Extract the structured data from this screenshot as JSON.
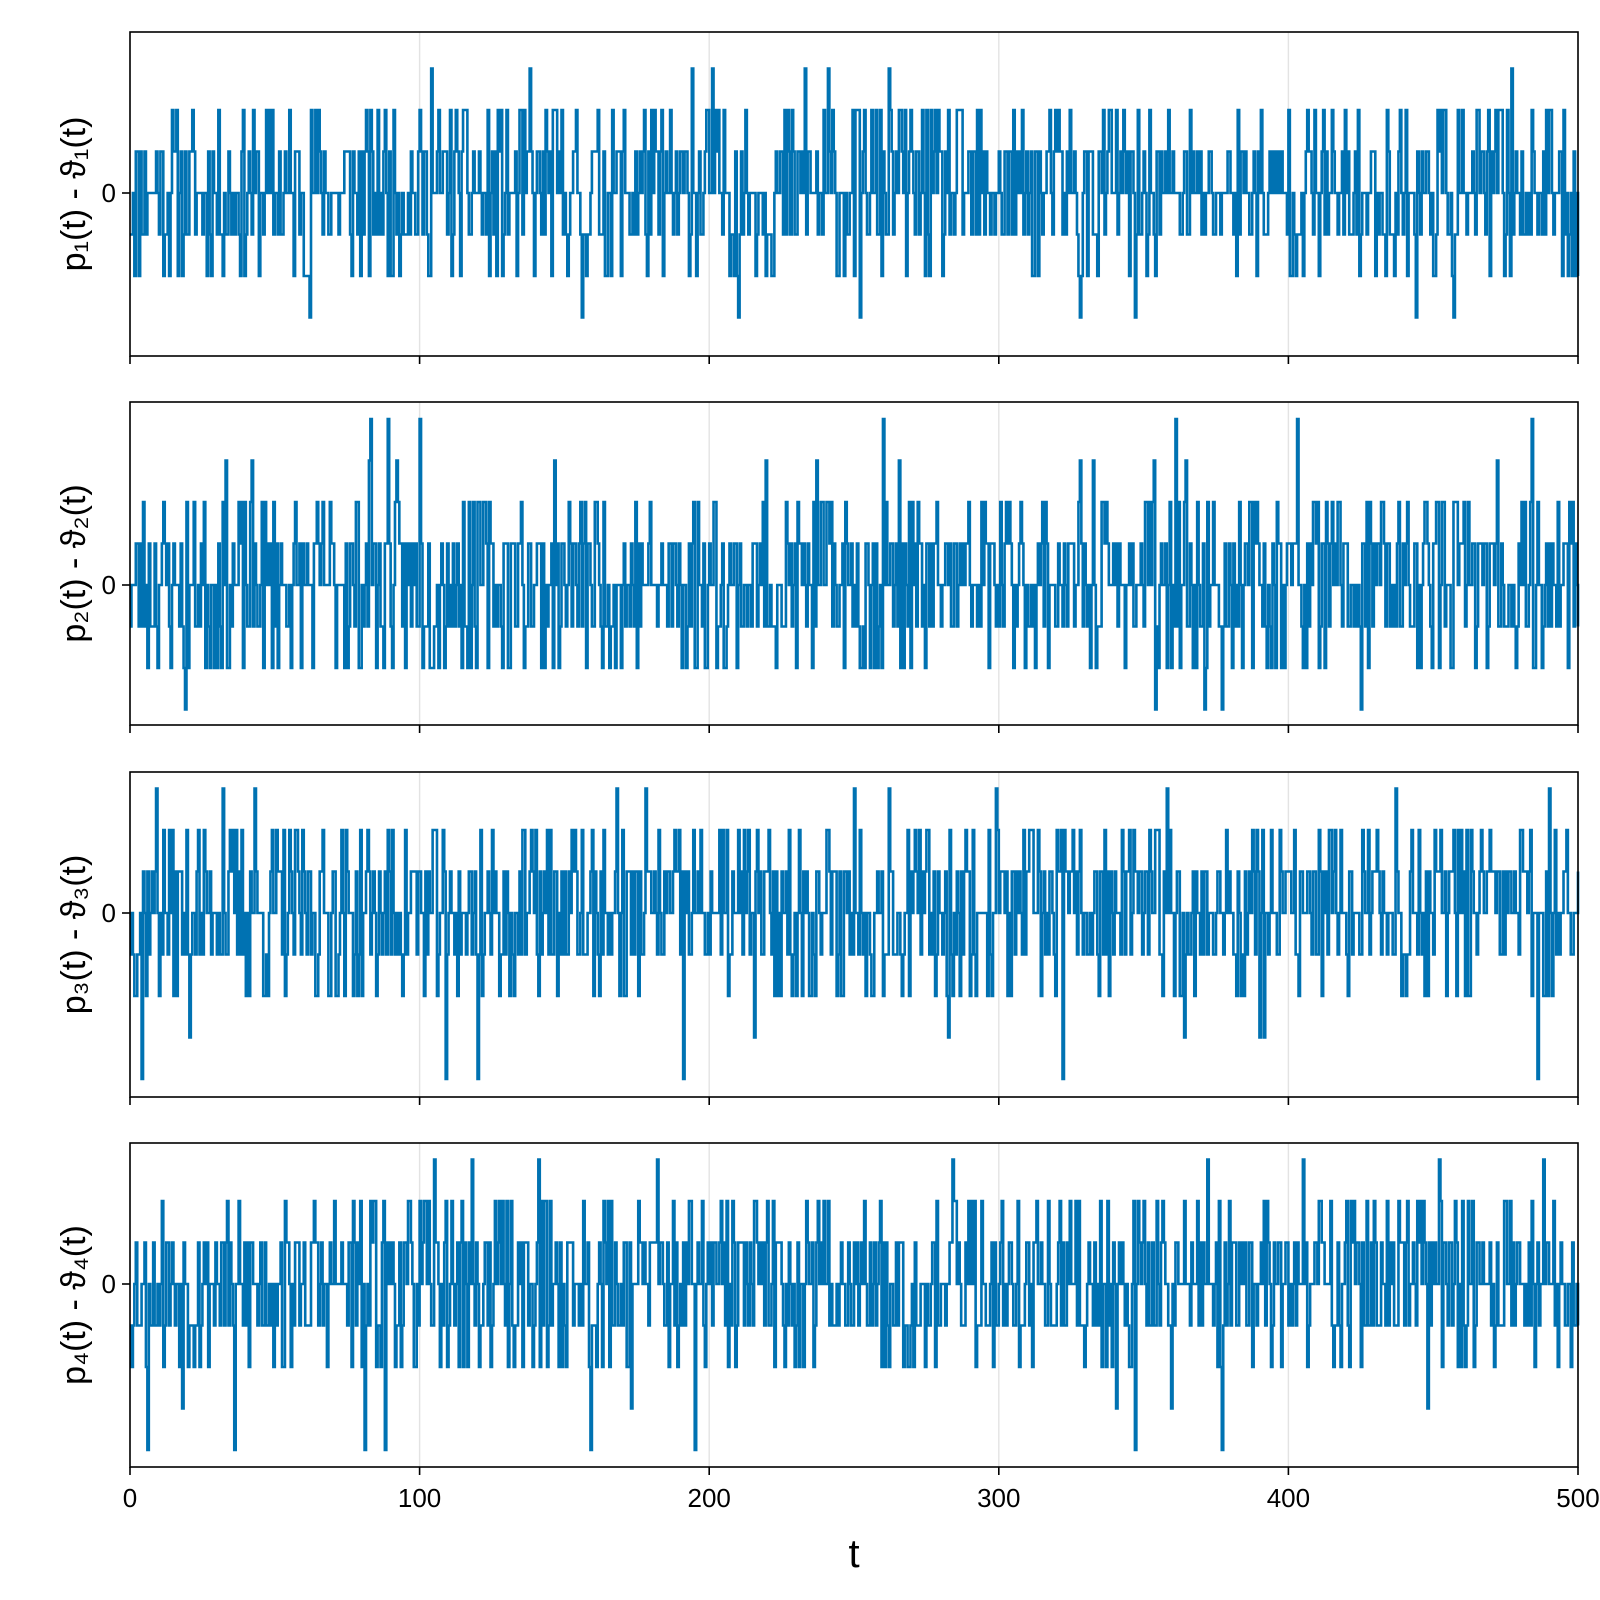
{
  "chart_data": [
    {
      "type": "line",
      "ylabel": "p₁(t) - ϑ₁(t)",
      "xlim": [
        0,
        500
      ],
      "yticks": [
        "0"
      ],
      "grid": true,
      "color": "#0072B2",
      "levels": [
        -3,
        -2,
        -1,
        0,
        1,
        2,
        3
      ],
      "ylim": [
        -3.3,
        3.3
      ],
      "seed": 11,
      "probs": [
        0.01,
        0.09,
        0.23,
        0.32,
        0.23,
        0.11,
        0.01
      ],
      "spikes_up": [
        104,
        138,
        194,
        201,
        233,
        241,
        262,
        477
      ],
      "spikes_down": [
        62,
        156,
        210,
        252,
        328,
        347,
        444,
        457
      ]
    },
    {
      "type": "line",
      "ylabel": "p₂(t) - ϑ₂(t)",
      "xlim": [
        0,
        500
      ],
      "yticks": [
        "0"
      ],
      "grid": true,
      "color": "#0072B2",
      "levels": [
        -3,
        -2,
        -1,
        0,
        1,
        2,
        3,
        4
      ],
      "ylim": [
        -3.4,
        4.4
      ],
      "seed": 23,
      "probs": [
        0.0,
        0.09,
        0.23,
        0.32,
        0.23,
        0.12,
        0.01,
        0.0
      ],
      "spikes_up": [
        83,
        89,
        100,
        260,
        361,
        403,
        484
      ],
      "spikes_down": [
        19,
        354,
        371,
        377,
        425
      ]
    },
    {
      "type": "line",
      "ylabel": "p₃(t) - ϑ₃(t)",
      "xlim": [
        0,
        500
      ],
      "yticks": [
        "0"
      ],
      "grid": true,
      "color": "#0072B2",
      "levels": [
        -4,
        -3,
        -2,
        -1,
        0,
        1,
        2,
        3
      ],
      "ylim": [
        -4.4,
        3.4
      ],
      "seed": 37,
      "probs": [
        0.0,
        0.01,
        0.09,
        0.23,
        0.32,
        0.23,
        0.11,
        0.01
      ],
      "spikes_up": [
        9,
        32,
        43,
        168,
        178,
        250,
        262,
        299,
        358,
        437,
        490
      ],
      "spikes_down": [
        4,
        109,
        120,
        191,
        322,
        486
      ]
    },
    {
      "type": "line",
      "ylabel": "p₄(t) - ϑ₄(t)",
      "xlabel": "t",
      "xlim": [
        0,
        500
      ],
      "xticks": [
        0,
        100,
        200,
        300,
        400,
        500
      ],
      "yticks": [
        "0"
      ],
      "grid": true,
      "color": "#0072B2",
      "levels": [
        -4,
        -3,
        -2,
        -1,
        0,
        1,
        2,
        3
      ],
      "ylim": [
        -4.4,
        3.4
      ],
      "seed": 53,
      "probs": [
        0.0,
        0.01,
        0.09,
        0.23,
        0.32,
        0.23,
        0.11,
        0.01
      ],
      "spikes_up": [
        105,
        118,
        141,
        182,
        284,
        372,
        405,
        452,
        488
      ],
      "spikes_down": [
        6,
        36,
        81,
        88,
        159,
        195,
        347,
        377
      ]
    }
  ]
}
